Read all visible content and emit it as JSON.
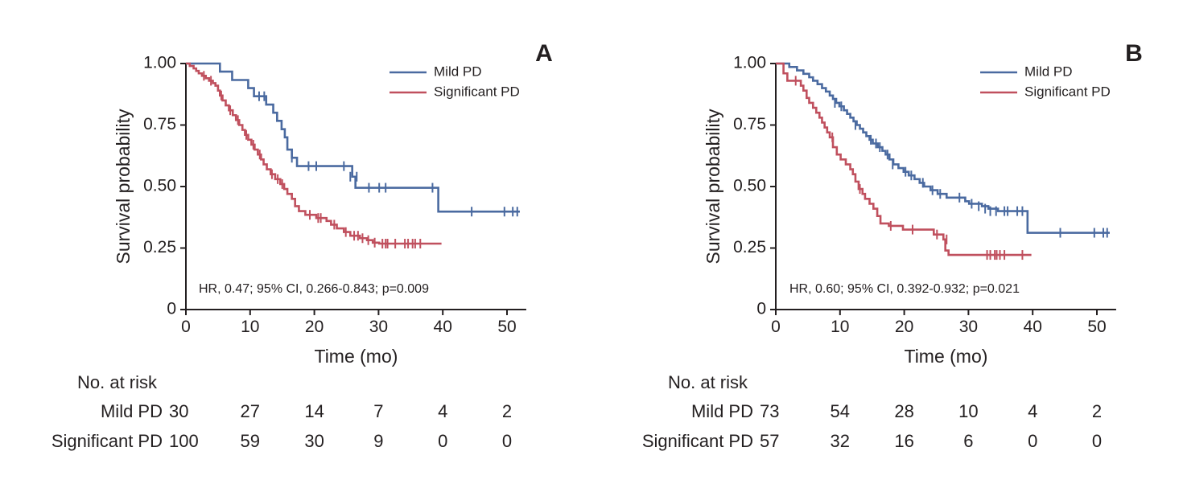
{
  "chart_data": [
    {
      "panel": "A",
      "type": "line",
      "subtype": "kaplan-meier",
      "xlabel": "Time (mo)",
      "ylabel": "Survival probability",
      "xlim": [
        0,
        53
      ],
      "ylim": [
        0,
        1
      ],
      "xticks": [
        0,
        10,
        20,
        30,
        40,
        50
      ],
      "xtick_labels": [
        "0",
        "10",
        "20",
        "30",
        "40",
        "50"
      ],
      "yticks": [
        0,
        0.25,
        0.5,
        0.75,
        1.0
      ],
      "ytick_labels": [
        "0",
        "0.25",
        "0.50",
        "0.75",
        "1.00"
      ],
      "legend": [
        "Mild PD",
        "Significant PD"
      ],
      "legend_position": "top-right",
      "annotation": "HR, 0.47; 95% CI, 0.266-0.843; p=0.009",
      "series": [
        {
          "name": "Mild PD",
          "color": "#4a6aa0",
          "steps": [
            [
              0,
              1.0
            ],
            [
              5.3,
              0.967
            ],
            [
              7.2,
              0.933
            ],
            [
              9.7,
              0.9
            ],
            [
              10.6,
              0.867
            ],
            [
              12.5,
              0.833
            ],
            [
              13.6,
              0.8
            ],
            [
              14.2,
              0.767
            ],
            [
              14.9,
              0.733
            ],
            [
              15.4,
              0.7
            ],
            [
              15.8,
              0.65
            ],
            [
              16.5,
              0.617
            ],
            [
              17.3,
              0.583
            ],
            [
              25.9,
              0.54
            ],
            [
              26.4,
              0.495
            ],
            [
              39.3,
              0.398
            ],
            [
              52,
              0.398
            ]
          ],
          "censors": [
            [
              12.2,
              0.867
            ],
            [
              11.4,
              0.867
            ],
            [
              16.5,
              0.617
            ],
            [
              19.1,
              0.583
            ],
            [
              20.3,
              0.583
            ],
            [
              24.6,
              0.583
            ],
            [
              25.6,
              0.54
            ],
            [
              26.6,
              0.54
            ],
            [
              28.5,
              0.495
            ],
            [
              30.1,
              0.495
            ],
            [
              31.1,
              0.495
            ],
            [
              38.4,
              0.495
            ],
            [
              44.5,
              0.398
            ],
            [
              49.6,
              0.398
            ],
            [
              50.9,
              0.398
            ],
            [
              51.6,
              0.398
            ]
          ]
        },
        {
          "name": "Significant PD",
          "color": "#c0505e",
          "steps": [
            [
              0,
              1.0
            ],
            [
              0.6,
              0.99
            ],
            [
              1.2,
              0.98
            ],
            [
              1.6,
              0.97
            ],
            [
              2,
              0.96
            ],
            [
              2.5,
              0.95
            ],
            [
              3.1,
              0.94
            ],
            [
              3.6,
              0.93
            ],
            [
              4.2,
              0.92
            ],
            [
              4.6,
              0.91
            ],
            [
              5,
              0.89
            ],
            [
              5.3,
              0.87
            ],
            [
              5.7,
              0.85
            ],
            [
              6.2,
              0.83
            ],
            [
              6.7,
              0.81
            ],
            [
              7.3,
              0.79
            ],
            [
              7.8,
              0.77
            ],
            [
              8.3,
              0.75
            ],
            [
              8.8,
              0.73
            ],
            [
              9.2,
              0.71
            ],
            [
              9.7,
              0.69
            ],
            [
              10.2,
              0.67
            ],
            [
              10.7,
              0.65
            ],
            [
              11.2,
              0.63
            ],
            [
              11.7,
              0.61
            ],
            [
              12.1,
              0.59
            ],
            [
              12.6,
              0.57
            ],
            [
              13.2,
              0.55
            ],
            [
              13.9,
              0.53
            ],
            [
              14.7,
              0.51
            ],
            [
              15.3,
              0.49
            ],
            [
              15.8,
              0.47
            ],
            [
              16.5,
              0.45
            ],
            [
              17,
              0.42
            ],
            [
              17.6,
              0.4
            ],
            [
              18.6,
              0.385
            ],
            [
              20.3,
              0.372
            ],
            [
              21.9,
              0.36
            ],
            [
              22.6,
              0.345
            ],
            [
              23.5,
              0.33
            ],
            [
              24.6,
              0.315
            ],
            [
              25.6,
              0.3
            ],
            [
              27.1,
              0.29
            ],
            [
              28.2,
              0.282
            ],
            [
              29.1,
              0.272
            ],
            [
              30.1,
              0.268
            ],
            [
              39.8,
              0.268
            ]
          ],
          "censors": [
            [
              2.8,
              0.95
            ],
            [
              3.9,
              0.93
            ],
            [
              5.5,
              0.87
            ],
            [
              6.9,
              0.81
            ],
            [
              8.1,
              0.77
            ],
            [
              9.4,
              0.71
            ],
            [
              10.5,
              0.67
            ],
            [
              11.5,
              0.63
            ],
            [
              13.4,
              0.55
            ],
            [
              14.3,
              0.53
            ],
            [
              15,
              0.51
            ],
            [
              19.3,
              0.385
            ],
            [
              20.6,
              0.372
            ],
            [
              21,
              0.372
            ],
            [
              23.1,
              0.345
            ],
            [
              24.9,
              0.315
            ],
            [
              26.2,
              0.3
            ],
            [
              26.8,
              0.3
            ],
            [
              27.5,
              0.29
            ],
            [
              28.4,
              0.282
            ],
            [
              29.4,
              0.272
            ],
            [
              30.6,
              0.268
            ],
            [
              31.1,
              0.268
            ],
            [
              31.4,
              0.268
            ],
            [
              32.6,
              0.268
            ],
            [
              34.1,
              0.268
            ],
            [
              34.6,
              0.268
            ],
            [
              35.3,
              0.268
            ],
            [
              35.7,
              0.268
            ],
            [
              36.5,
              0.268
            ]
          ]
        }
      ],
      "risk_table": {
        "header": "No. at risk",
        "time_points": [
          0,
          10,
          20,
          30,
          40,
          50
        ],
        "rows": [
          {
            "label": "Mild PD",
            "values": [
              "30",
              "27",
              "14",
              "7",
              "4",
              "2"
            ]
          },
          {
            "label": "Significant PD",
            "values": [
              "100",
              "59",
              "30",
              "9",
              "0",
              "0"
            ]
          }
        ]
      }
    },
    {
      "panel": "B",
      "type": "line",
      "subtype": "kaplan-meier",
      "xlabel": "Time (mo)",
      "ylabel": "Survival probability",
      "xlim": [
        0,
        53
      ],
      "ylim": [
        0,
        1
      ],
      "xticks": [
        0,
        10,
        20,
        30,
        40,
        50
      ],
      "xtick_labels": [
        "0",
        "10",
        "20",
        "30",
        "40",
        "50"
      ],
      "yticks": [
        0,
        0.25,
        0.5,
        0.75,
        1.0
      ],
      "ytick_labels": [
        "0",
        "0.25",
        "0.50",
        "0.75",
        "1.00"
      ],
      "legend": [
        "Mild PD",
        "Significant PD"
      ],
      "legend_position": "top-right",
      "annotation": "HR, 0.60; 95% CI, 0.392-0.932; p=0.021",
      "series": [
        {
          "name": "Mild PD",
          "color": "#4a6aa0",
          "steps": [
            [
              0,
              1.0
            ],
            [
              2.1,
              0.986
            ],
            [
              3.3,
              0.972
            ],
            [
              4.3,
              0.958
            ],
            [
              5.2,
              0.944
            ],
            [
              5.8,
              0.93
            ],
            [
              6.5,
              0.916
            ],
            [
              7.2,
              0.9
            ],
            [
              7.8,
              0.886
            ],
            [
              8.4,
              0.87
            ],
            [
              8.9,
              0.856
            ],
            [
              9.4,
              0.84
            ],
            [
              9.9,
              0.826
            ],
            [
              10.6,
              0.81
            ],
            [
              11.1,
              0.795
            ],
            [
              11.6,
              0.78
            ],
            [
              12.1,
              0.765
            ],
            [
              12.6,
              0.75
            ],
            [
              13.1,
              0.735
            ],
            [
              13.6,
              0.72
            ],
            [
              14.1,
              0.705
            ],
            [
              14.6,
              0.69
            ],
            [
              15.1,
              0.675
            ],
            [
              15.9,
              0.66
            ],
            [
              16.6,
              0.645
            ],
            [
              17.1,
              0.63
            ],
            [
              17.7,
              0.61
            ],
            [
              18.3,
              0.59
            ],
            [
              19.1,
              0.575
            ],
            [
              19.9,
              0.56
            ],
            [
              20.7,
              0.545
            ],
            [
              21.6,
              0.53
            ],
            [
              22.4,
              0.515
            ],
            [
              23.1,
              0.5
            ],
            [
              24.1,
              0.485
            ],
            [
              25.2,
              0.47
            ],
            [
              26.6,
              0.455
            ],
            [
              29.5,
              0.44
            ],
            [
              30.1,
              0.43
            ],
            [
              32.1,
              0.42
            ],
            [
              33.1,
              0.41
            ],
            [
              34.6,
              0.4
            ],
            [
              39.2,
              0.312
            ],
            [
              52,
              0.312
            ]
          ],
          "censors": [
            [
              9.2,
              0.84
            ],
            [
              10.2,
              0.826
            ],
            [
              12.4,
              0.75
            ],
            [
              14.8,
              0.69
            ],
            [
              15.6,
              0.675
            ],
            [
              16.2,
              0.66
            ],
            [
              17.4,
              0.63
            ],
            [
              18.2,
              0.59
            ],
            [
              20.2,
              0.56
            ],
            [
              21.1,
              0.545
            ],
            [
              22.9,
              0.515
            ],
            [
              24.4,
              0.485
            ],
            [
              25.6,
              0.47
            ],
            [
              28.6,
              0.455
            ],
            [
              30.5,
              0.43
            ],
            [
              31.6,
              0.42
            ],
            [
              32.6,
              0.41
            ],
            [
              33.4,
              0.4
            ],
            [
              34.3,
              0.4
            ],
            [
              35.6,
              0.4
            ],
            [
              36.1,
              0.4
            ],
            [
              37.6,
              0.4
            ],
            [
              38.4,
              0.4
            ],
            [
              44.3,
              0.312
            ],
            [
              49.6,
              0.312
            ],
            [
              51,
              0.312
            ],
            [
              51.6,
              0.312
            ]
          ]
        },
        {
          "name": "Significant PD",
          "color": "#c0505e",
          "steps": [
            [
              0,
              1.0
            ],
            [
              1.2,
              0.96
            ],
            [
              1.8,
              0.93
            ],
            [
              3.9,
              0.91
            ],
            [
              4.3,
              0.89
            ],
            [
              4.8,
              0.86
            ],
            [
              5.2,
              0.84
            ],
            [
              5.8,
              0.82
            ],
            [
              6.3,
              0.8
            ],
            [
              6.8,
              0.78
            ],
            [
              7.2,
              0.76
            ],
            [
              7.6,
              0.74
            ],
            [
              8,
              0.72
            ],
            [
              8.4,
              0.7
            ],
            [
              8.9,
              0.66
            ],
            [
              9.5,
              0.63
            ],
            [
              10.1,
              0.61
            ],
            [
              10.9,
              0.59
            ],
            [
              11.6,
              0.57
            ],
            [
              12,
              0.55
            ],
            [
              12.4,
              0.52
            ],
            [
              12.9,
              0.49
            ],
            [
              13.5,
              0.47
            ],
            [
              13.9,
              0.45
            ],
            [
              14.6,
              0.43
            ],
            [
              15.2,
              0.41
            ],
            [
              15.8,
              0.38
            ],
            [
              16.3,
              0.35
            ],
            [
              17.6,
              0.34
            ],
            [
              19.8,
              0.325
            ],
            [
              24.6,
              0.305
            ],
            [
              26.1,
              0.285
            ],
            [
              26.4,
              0.24
            ],
            [
              26.9,
              0.222
            ],
            [
              39.8,
              0.222
            ]
          ],
          "censors": [
            [
              3.1,
              0.93
            ],
            [
              8.8,
              0.7
            ],
            [
              13.1,
              0.49
            ],
            [
              17.9,
              0.34
            ],
            [
              21.3,
              0.325
            ],
            [
              25.1,
              0.305
            ],
            [
              26.6,
              0.285
            ],
            [
              32.9,
              0.222
            ],
            [
              33.4,
              0.222
            ],
            [
              34.1,
              0.222
            ],
            [
              34.4,
              0.222
            ],
            [
              34.9,
              0.222
            ],
            [
              35.6,
              0.222
            ],
            [
              38.4,
              0.222
            ]
          ]
        }
      ],
      "risk_table": {
        "header": "No. at risk",
        "time_points": [
          0,
          10,
          20,
          30,
          40,
          50
        ],
        "rows": [
          {
            "label": "Mild PD",
            "values": [
              "73",
              "54",
              "28",
              "10",
              "4",
              "2"
            ]
          },
          {
            "label": "Significant PD",
            "values": [
              "57",
              "32",
              "16",
              "6",
              "0",
              "0"
            ]
          }
        ]
      }
    }
  ]
}
